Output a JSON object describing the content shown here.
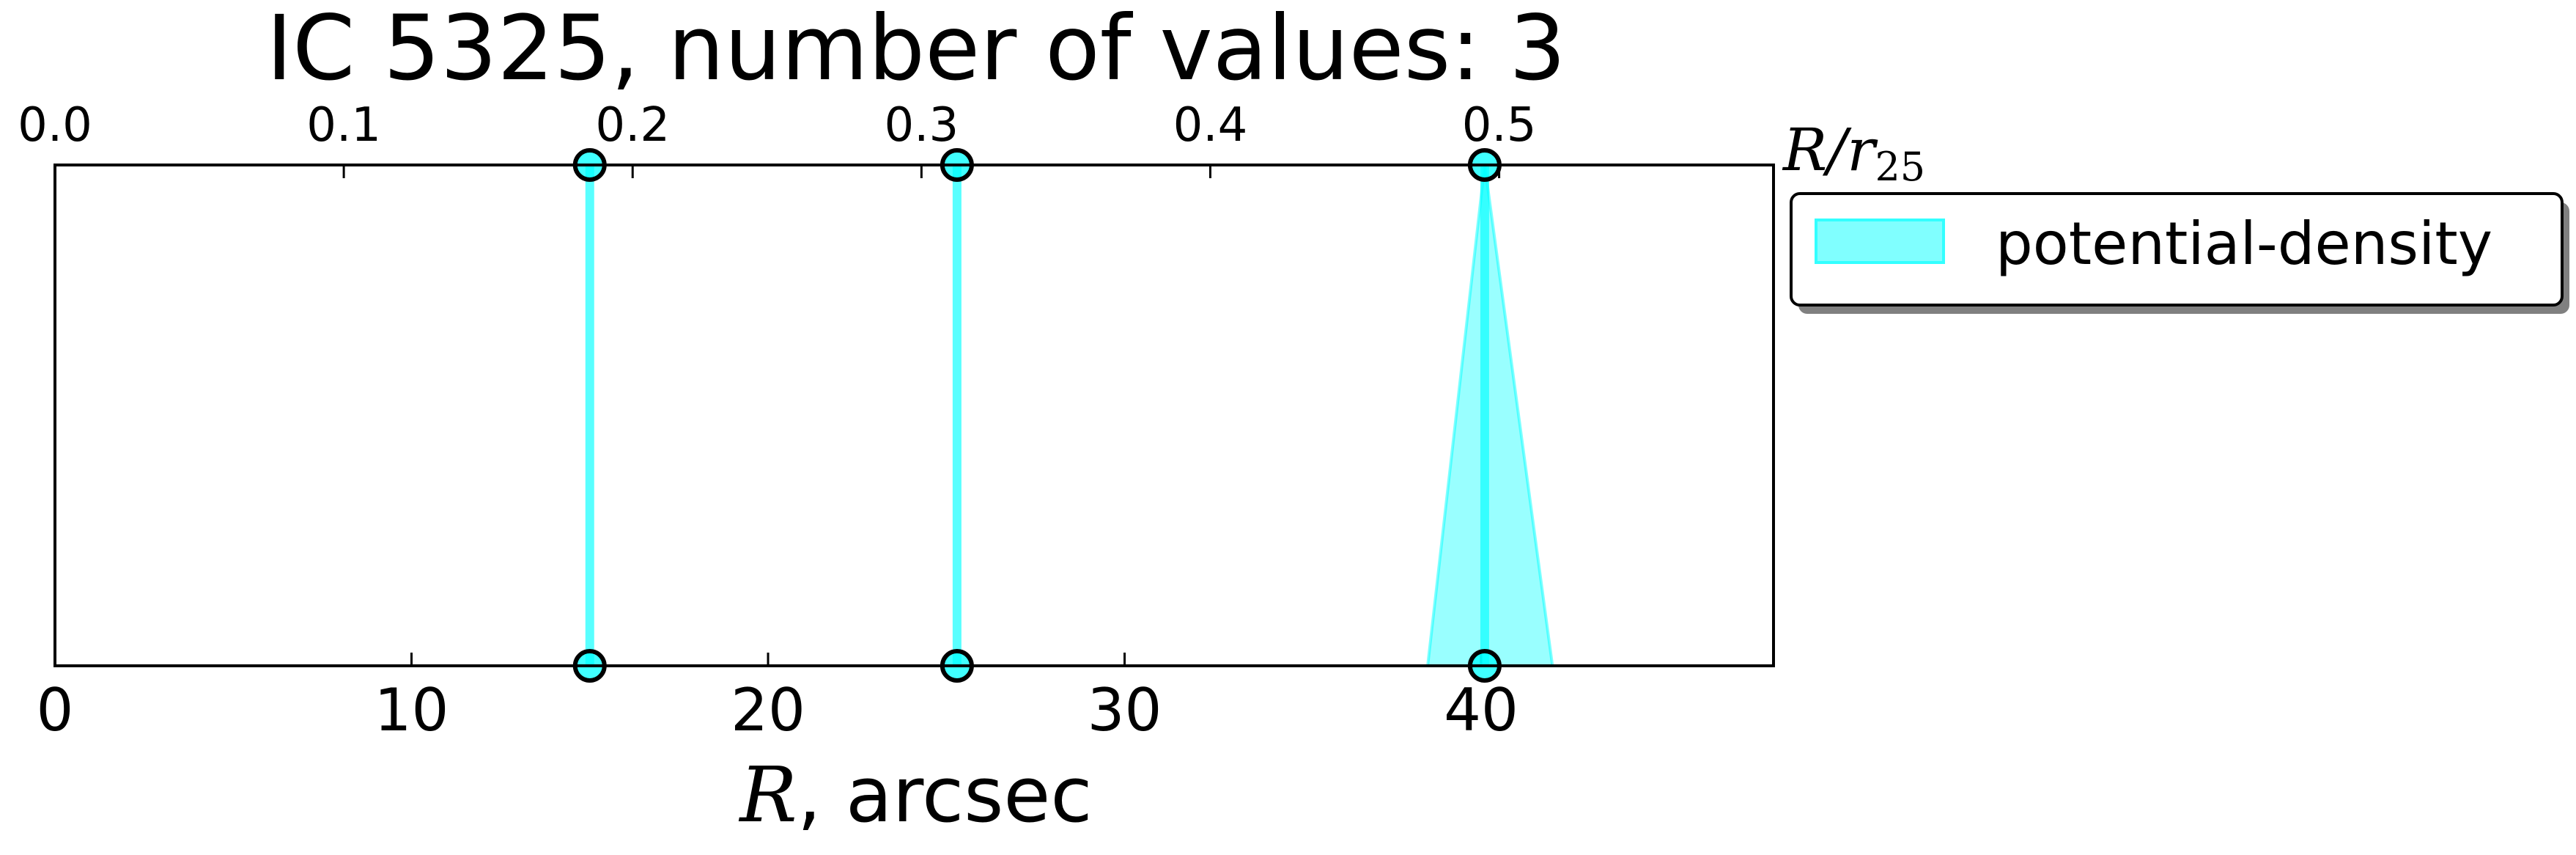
{
  "chart_data": {
    "type": "line",
    "title": "IC 5325, number of values: 3",
    "xlabel_math": "R",
    "xlabel_rest": ", arcsec",
    "top_xlabel_main": "R/r",
    "top_xlabel_sub": "25",
    "xlim": [
      0,
      48.2
    ],
    "top_xlim": [
      0,
      0.595
    ],
    "x_ticks": [
      {
        "value": 0,
        "label": "0"
      },
      {
        "value": 10,
        "label": "10"
      },
      {
        "value": 20,
        "label": "20"
      },
      {
        "value": 30,
        "label": "30"
      },
      {
        "value": 40,
        "label": "40"
      }
    ],
    "top_ticks": [
      {
        "value": 0.0,
        "label": "0.0"
      },
      {
        "value": 0.1,
        "label": "0.1"
      },
      {
        "value": 0.2,
        "label": "0.2"
      },
      {
        "value": 0.3,
        "label": "0.3"
      },
      {
        "value": 0.4,
        "label": "0.4"
      },
      {
        "value": 0.5,
        "label": "0.5"
      }
    ],
    "series": [
      {
        "name": "potential-density",
        "color": "#00ffff",
        "values": [
          {
            "x": 15.0,
            "x_low": 15.0,
            "x_high": 15.0
          },
          {
            "x": 25.3,
            "x_low": 25.3,
            "x_high": 25.3
          },
          {
            "x": 40.1,
            "x_low": 38.5,
            "x_high": 42.0
          }
        ]
      }
    ],
    "legend": {
      "placement": "outside-top-right",
      "label": "potential-density"
    },
    "grid": false
  }
}
